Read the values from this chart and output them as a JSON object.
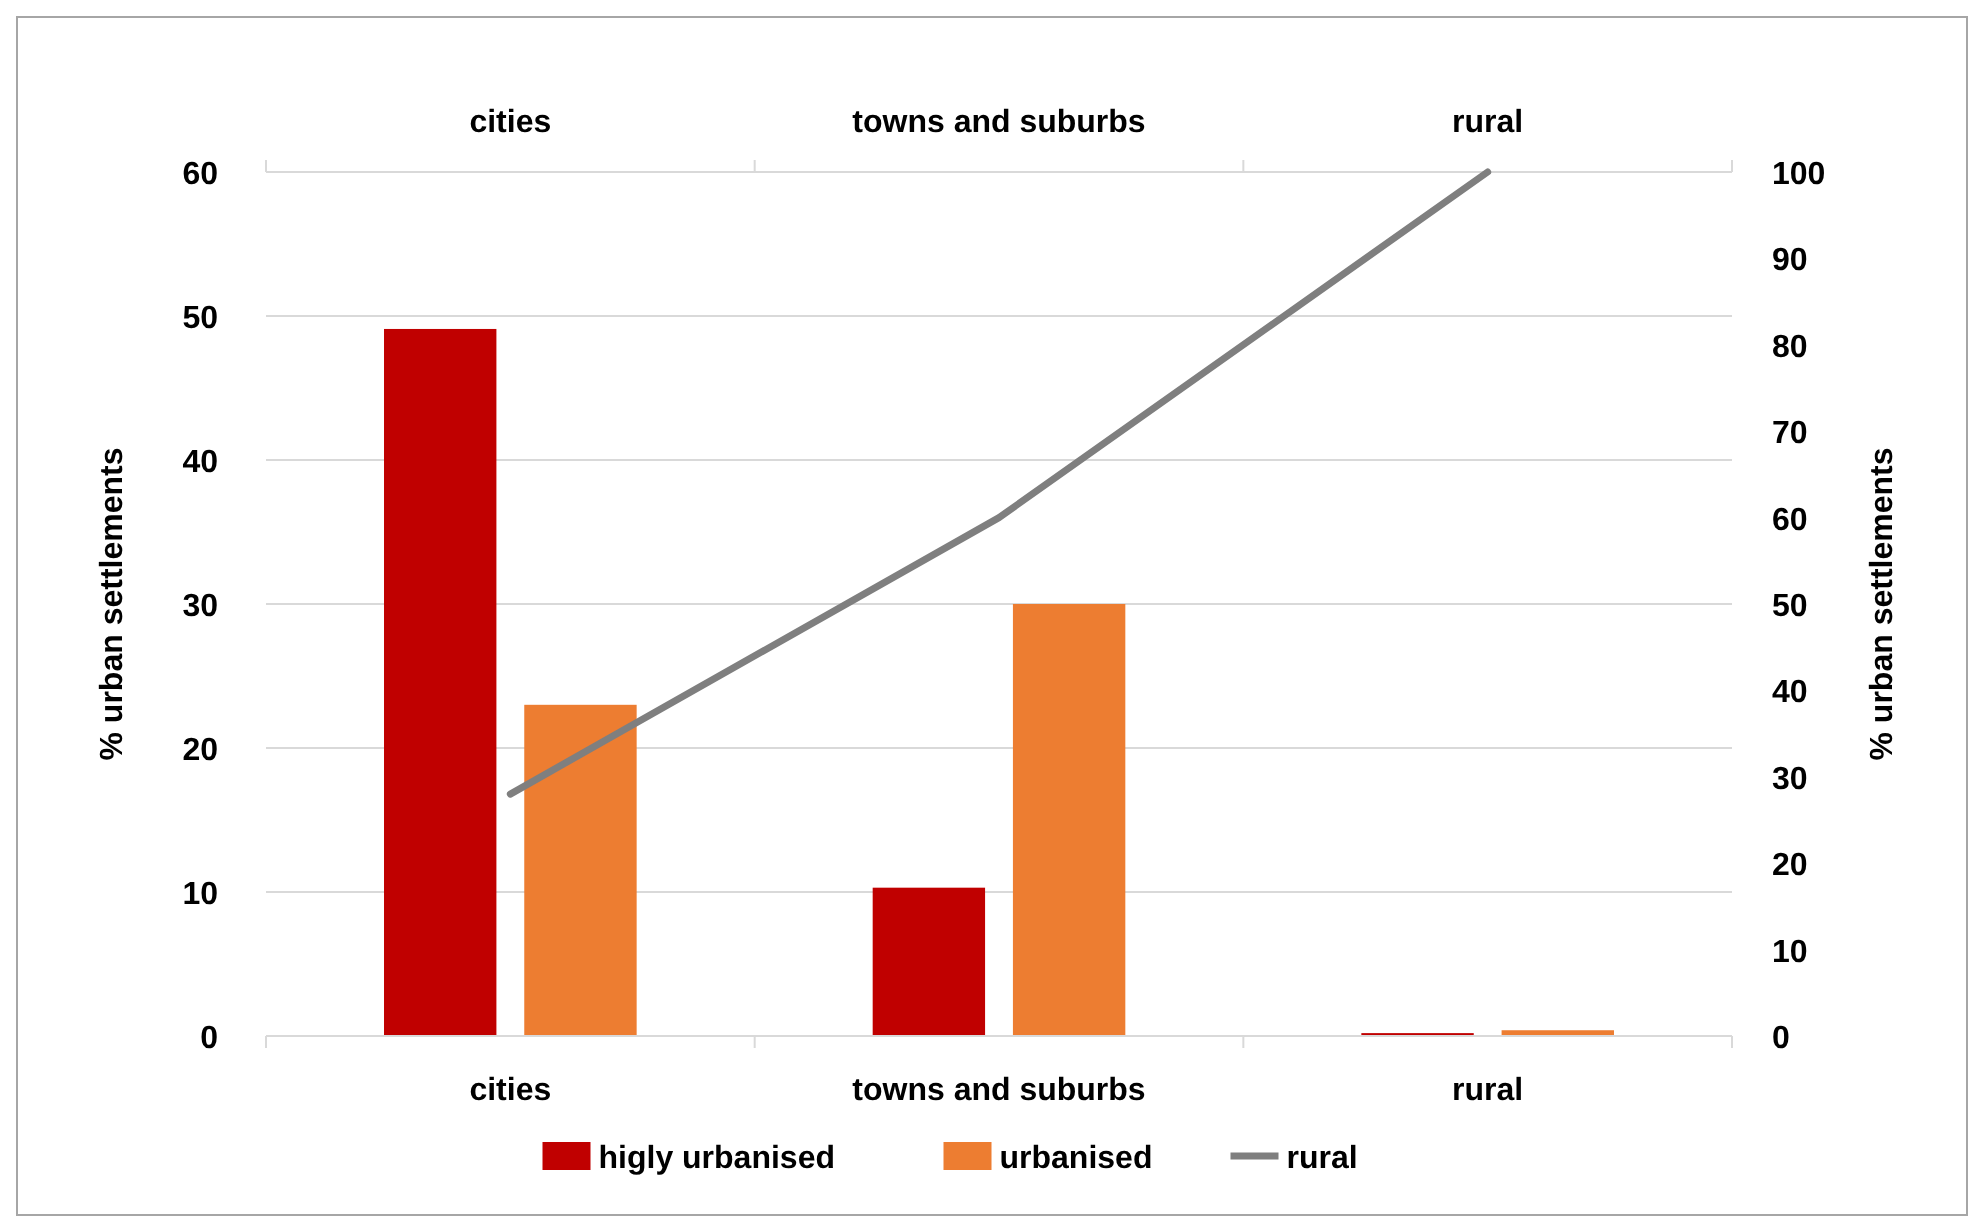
{
  "chart_data": {
    "type": "bar",
    "categories": [
      "cities",
      "towns and suburbs",
      "rural"
    ],
    "ylabel": "% urban settlements",
    "y2label": "% urban settlements",
    "series": [
      {
        "name": "higly urbanised",
        "color": "#c00000",
        "values": [
          49.1,
          10.3,
          0.2
        ]
      },
      {
        "name": "urbanised",
        "color": "#ed7d31",
        "values": [
          23,
          30,
          0.4
        ]
      },
      {
        "name": "rural",
        "type": "line",
        "axis": "y2",
        "color": "#7f7f7f",
        "values": [
          28,
          60,
          100
        ]
      }
    ],
    "ylim": [
      0,
      60
    ],
    "yticks": [
      0,
      10,
      20,
      30,
      40,
      50,
      60
    ],
    "y2lim": [
      0,
      100
    ],
    "y2ticks": [
      0,
      10,
      20,
      30,
      40,
      50,
      60,
      70,
      80,
      90,
      100
    ],
    "grid": "y",
    "legend": "bottom"
  }
}
